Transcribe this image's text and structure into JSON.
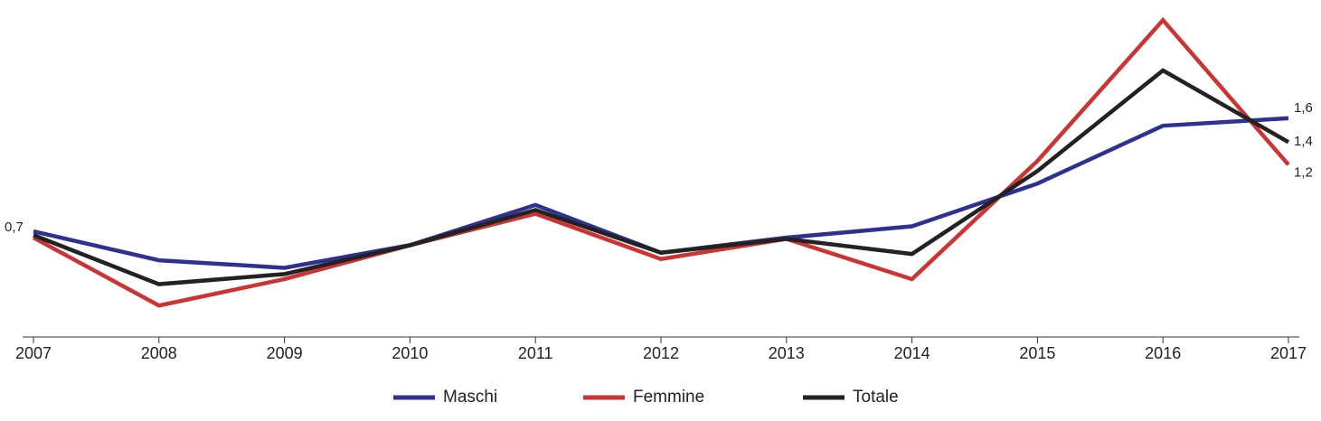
{
  "chart_data": {
    "type": "line",
    "categories": [
      "2007",
      "2008",
      "2009",
      "2010",
      "2011",
      "2012",
      "2013",
      "2014",
      "2015",
      "2016",
      "2017"
    ],
    "series": [
      {
        "name": "Maschi",
        "color": "#2e3192",
        "values": [
          0.7,
          0.47,
          0.41,
          0.59,
          0.91,
          0.53,
          0.65,
          0.74,
          1.08,
          1.54,
          1.6
        ],
        "value_labels": [
          "0,7",
          null,
          null,
          null,
          null,
          null,
          null,
          null,
          null,
          null,
          "1,6"
        ]
      },
      {
        "name": "Femmine",
        "color": "#cc3333",
        "values": [
          0.65,
          0.11,
          0.32,
          0.59,
          0.84,
          0.48,
          0.64,
          0.32,
          1.26,
          2.38,
          1.23
        ],
        "value_labels": [
          null,
          null,
          null,
          null,
          null,
          null,
          null,
          null,
          null,
          null,
          "1,2"
        ]
      },
      {
        "name": "Totale",
        "color": "#222222",
        "values": [
          0.67,
          0.28,
          0.36,
          0.59,
          0.87,
          0.53,
          0.64,
          0.52,
          1.18,
          1.98,
          1.41
        ],
        "value_labels": [
          null,
          null,
          null,
          null,
          null,
          null,
          null,
          null,
          null,
          null,
          "1,4"
        ]
      }
    ],
    "ylim": [
      -0.14,
      2.54
    ]
  }
}
